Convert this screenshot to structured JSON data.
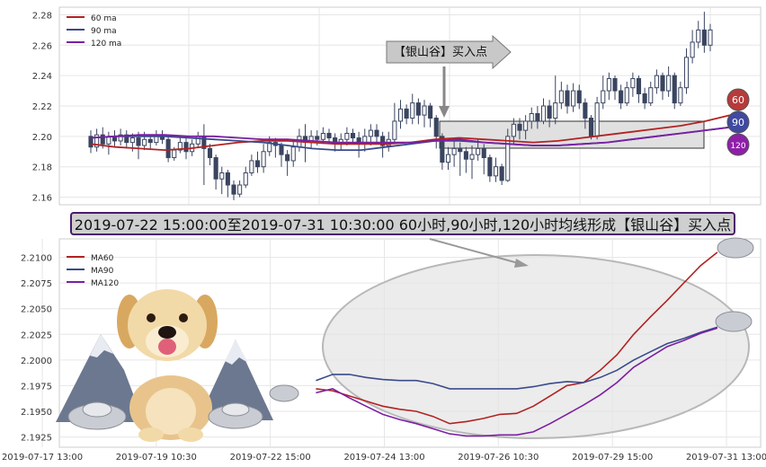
{
  "chart_data": [
    {
      "type": "candlestick",
      "legend": [
        "60 ma",
        "90 ma",
        "120 ma"
      ],
      "legend_position": "top-left",
      "y_ticks": [
        "2.16",
        "2.18",
        "2.20",
        "2.22",
        "2.24",
        "2.26",
        "2.28"
      ],
      "ylim": [
        2.155,
        2.285
      ],
      "grid": true,
      "annotation": "【银山谷】买入点",
      "badges": [
        "60",
        "90",
        "120"
      ],
      "colors": {
        "ma60": "#b22222",
        "ma90": "#3a4a8c",
        "ma120": "#7b1fa2",
        "candle": "#3a4560"
      },
      "series": [
        {
          "name": "60 ma",
          "values": [
            2.195,
            2.193,
            2.192,
            2.191,
            2.192,
            2.194,
            2.196,
            2.197,
            2.197,
            2.196,
            2.195,
            2.195,
            2.195,
            2.196,
            2.198,
            2.199,
            2.198,
            2.197,
            2.196,
            2.197,
            2.199,
            2.201,
            2.203,
            2.205,
            2.207,
            2.21,
            2.214
          ]
        },
        {
          "name": "90 ma",
          "values": [
            2.199,
            2.2,
            2.2,
            2.2,
            2.199,
            2.198,
            2.197,
            2.196,
            2.194,
            2.192,
            2.191,
            2.191,
            2.193,
            2.195,
            2.197,
            2.197,
            2.196,
            2.195,
            2.194,
            2.194,
            2.195,
            2.196,
            2.198,
            2.2,
            2.202,
            2.204,
            2.206
          ]
        },
        {
          "name": "120 ma",
          "values": [
            2.199,
            2.2,
            2.201,
            2.201,
            2.2,
            2.2,
            2.199,
            2.198,
            2.198,
            2.197,
            2.196,
            2.196,
            2.196,
            2.196,
            2.197,
            2.198,
            2.196,
            2.195,
            2.194,
            2.194,
            2.195,
            2.196,
            2.198,
            2.2,
            2.202,
            2.204,
            2.206
          ]
        }
      ],
      "candles": [
        [
          2.2,
          2.193,
          2.204,
          2.189
        ],
        [
          2.193,
          2.201,
          2.205,
          2.19
        ],
        [
          2.201,
          2.195,
          2.206,
          2.192
        ],
        [
          2.195,
          2.2,
          2.203,
          2.188
        ],
        [
          2.2,
          2.197,
          2.204,
          2.193
        ],
        [
          2.197,
          2.201,
          2.205,
          2.194
        ],
        [
          2.201,
          2.196,
          2.204,
          2.192
        ],
        [
          2.196,
          2.199,
          2.202,
          2.19
        ],
        [
          2.199,
          2.194,
          2.203,
          2.185
        ],
        [
          2.194,
          2.198,
          2.203,
          2.191
        ],
        [
          2.198,
          2.196,
          2.201,
          2.192
        ],
        [
          2.196,
          2.2,
          2.204,
          2.194
        ],
        [
          2.2,
          2.198,
          2.204,
          2.195
        ],
        [
          2.198,
          2.186,
          2.2,
          2.183
        ],
        [
          2.186,
          2.191,
          2.193,
          2.184
        ],
        [
          2.191,
          2.196,
          2.199,
          2.189
        ],
        [
          2.196,
          2.19,
          2.2,
          2.185
        ],
        [
          2.19,
          2.195,
          2.198,
          2.187
        ],
        [
          2.195,
          2.2,
          2.203,
          2.193
        ],
        [
          2.2,
          2.192,
          2.208,
          2.168
        ],
        [
          2.192,
          2.186,
          2.195,
          2.181
        ],
        [
          2.186,
          2.172,
          2.188,
          2.165
        ],
        [
          2.172,
          2.176,
          2.18,
          2.162
        ],
        [
          2.176,
          2.168,
          2.178,
          2.16
        ],
        [
          2.168,
          2.162,
          2.171,
          2.158
        ],
        [
          2.162,
          2.168,
          2.171,
          2.16
        ],
        [
          2.168,
          2.176,
          2.18,
          2.166
        ],
        [
          2.176,
          2.184,
          2.188,
          2.174
        ],
        [
          2.184,
          2.18,
          2.19,
          2.176
        ],
        [
          2.18,
          2.19,
          2.195,
          2.176
        ],
        [
          2.19,
          2.196,
          2.2,
          2.187
        ],
        [
          2.196,
          2.194,
          2.199,
          2.186
        ],
        [
          2.194,
          2.188,
          2.196,
          2.18
        ],
        [
          2.188,
          2.184,
          2.191,
          2.174
        ],
        [
          2.184,
          2.193,
          2.197,
          2.18
        ],
        [
          2.193,
          2.2,
          2.205,
          2.19
        ],
        [
          2.2,
          2.196,
          2.208,
          2.183
        ],
        [
          2.196,
          2.2,
          2.204,
          2.192
        ],
        [
          2.2,
          2.198,
          2.204,
          2.194
        ],
        [
          2.198,
          2.202,
          2.206,
          2.195
        ],
        [
          2.202,
          2.199,
          2.205,
          2.195
        ],
        [
          2.199,
          2.195,
          2.202,
          2.19
        ],
        [
          2.195,
          2.198,
          2.202,
          2.191
        ],
        [
          2.198,
          2.202,
          2.206,
          2.194
        ],
        [
          2.202,
          2.199,
          2.205,
          2.195
        ],
        [
          2.199,
          2.195,
          2.203,
          2.186
        ],
        [
          2.195,
          2.2,
          2.205,
          2.19
        ],
        [
          2.2,
          2.204,
          2.208,
          2.194
        ],
        [
          2.204,
          2.2,
          2.208,
          2.195
        ],
        [
          2.2,
          2.194,
          2.203,
          2.186
        ],
        [
          2.194,
          2.198,
          2.203,
          2.19
        ],
        [
          2.198,
          2.21,
          2.222,
          2.195
        ],
        [
          2.21,
          2.218,
          2.224,
          2.205
        ],
        [
          2.218,
          2.212,
          2.221,
          2.208
        ],
        [
          2.212,
          2.222,
          2.228,
          2.208
        ],
        [
          2.222,
          2.214,
          2.225,
          2.208
        ],
        [
          2.214,
          2.22,
          2.224,
          2.206
        ],
        [
          2.22,
          2.212,
          2.222,
          2.206
        ],
        [
          2.212,
          2.2,
          2.214,
          2.192
        ],
        [
          2.2,
          2.183,
          2.202,
          2.178
        ],
        [
          2.183,
          2.188,
          2.193,
          2.178
        ],
        [
          2.188,
          2.192,
          2.197,
          2.18
        ],
        [
          2.192,
          2.19,
          2.196,
          2.174
        ],
        [
          2.19,
          2.185,
          2.193,
          2.176
        ],
        [
          2.185,
          2.188,
          2.194,
          2.172
        ],
        [
          2.188,
          2.192,
          2.198,
          2.184
        ],
        [
          2.192,
          2.186,
          2.195,
          2.175
        ],
        [
          2.186,
          2.174,
          2.188,
          2.17
        ],
        [
          2.174,
          2.18,
          2.186,
          2.17
        ],
        [
          2.18,
          2.171,
          2.182,
          2.168
        ],
        [
          2.171,
          2.2,
          2.205,
          2.17
        ],
        [
          2.2,
          2.208,
          2.212,
          2.195
        ],
        [
          2.208,
          2.204,
          2.212,
          2.198
        ],
        [
          2.204,
          2.21,
          2.214,
          2.198
        ],
        [
          2.21,
          2.215,
          2.219,
          2.205
        ],
        [
          2.215,
          2.21,
          2.22,
          2.205
        ],
        [
          2.21,
          2.22,
          2.225,
          2.208
        ],
        [
          2.22,
          2.212,
          2.224,
          2.206
        ],
        [
          2.212,
          2.222,
          2.24,
          2.208
        ],
        [
          2.222,
          2.23,
          2.236,
          2.218
        ],
        [
          2.23,
          2.22,
          2.234,
          2.215
        ],
        [
          2.22,
          2.23,
          2.235,
          2.216
        ],
        [
          2.23,
          2.222,
          2.234,
          2.218
        ],
        [
          2.222,
          2.212,
          2.225,
          2.205
        ],
        [
          2.212,
          2.2,
          2.214,
          2.198
        ],
        [
          2.2,
          2.222,
          2.226,
          2.198
        ],
        [
          2.222,
          2.23,
          2.24,
          2.218
        ],
        [
          2.23,
          2.238,
          2.242,
          2.224
        ],
        [
          2.238,
          2.23,
          2.24,
          2.224
        ],
        [
          2.23,
          2.222,
          2.234,
          2.218
        ],
        [
          2.222,
          2.232,
          2.236,
          2.22
        ],
        [
          2.232,
          2.238,
          2.242,
          2.226
        ],
        [
          2.238,
          2.228,
          2.24,
          2.222
        ],
        [
          2.228,
          2.222,
          2.232,
          2.218
        ],
        [
          2.222,
          2.232,
          2.236,
          2.22
        ],
        [
          2.232,
          2.24,
          2.244,
          2.228
        ],
        [
          2.24,
          2.23,
          2.242,
          2.224
        ],
        [
          2.23,
          2.24,
          2.246,
          2.226
        ],
        [
          2.24,
          2.222,
          2.242,
          2.218
        ],
        [
          2.222,
          2.232,
          2.236,
          2.22
        ],
        [
          2.232,
          2.252,
          2.258,
          2.228
        ],
        [
          2.252,
          2.262,
          2.27,
          2.248
        ],
        [
          2.262,
          2.27,
          2.276,
          2.258
        ],
        [
          2.27,
          2.26,
          2.282,
          2.255
        ],
        [
          2.26,
          2.27,
          2.274,
          2.256
        ]
      ]
    },
    {
      "type": "line",
      "legend": [
        "MA60",
        "MA90",
        "MA120"
      ],
      "legend_position": "top-left",
      "title": "2019-07-22 15:00:00至2019-07-31 10:30:00 60小时,90小时,120小时均线形成【银山谷】买入点",
      "x_ticks": [
        "2019-07-17 13:00",
        "2019-07-19 10:30",
        "2019-07-22 15:00",
        "2019-07-24 13:00",
        "2019-07-26 10:30",
        "2019-07-29 15:00",
        "2019-07-31 13:00"
      ],
      "y_ticks": [
        "2.1925",
        "2.1950",
        "2.1975",
        "2.2000",
        "2.2025",
        "2.2050",
        "2.2075",
        "2.2100"
      ],
      "ylim": [
        2.1915,
        2.2118
      ],
      "grid": true,
      "colors": {
        "ma60": "#b22222",
        "ma90": "#3a4a8c",
        "ma120": "#7b1fa2"
      },
      "x_index_range": [
        0,
        30
      ],
      "series_start_index": 12,
      "series": [
        {
          "name": "MA60",
          "values": [
            2.1972,
            2.197,
            2.1965,
            2.196,
            2.1955,
            2.1952,
            2.195,
            2.1945,
            2.1938,
            2.194,
            2.1943,
            2.1947,
            2.1948,
            2.1955,
            2.1965,
            2.1975,
            2.1978,
            2.199,
            2.2005,
            2.2025,
            2.2042,
            2.2058,
            2.2075,
            2.2092,
            2.2105
          ]
        },
        {
          "name": "MA90",
          "values": [
            2.198,
            2.1986,
            2.1986,
            2.1983,
            2.1981,
            2.198,
            2.198,
            2.1977,
            2.1972,
            2.1972,
            2.1972,
            2.1972,
            2.1972,
            2.1974,
            2.1977,
            2.1979,
            2.1978,
            2.1983,
            2.199,
            2.2,
            2.2008,
            2.2016,
            2.2021,
            2.2027,
            2.2032
          ]
        },
        {
          "name": "MA120",
          "values": [
            2.1968,
            2.1972,
            2.1963,
            2.1955,
            2.1947,
            2.1942,
            2.1938,
            2.1933,
            2.1928,
            2.1926,
            2.1926,
            2.1927,
            2.1927,
            2.193,
            2.1938,
            2.1947,
            2.1956,
            2.1966,
            2.1978,
            2.1993,
            2.2003,
            2.2013,
            2.2019,
            2.2026,
            2.2031
          ]
        }
      ]
    }
  ]
}
